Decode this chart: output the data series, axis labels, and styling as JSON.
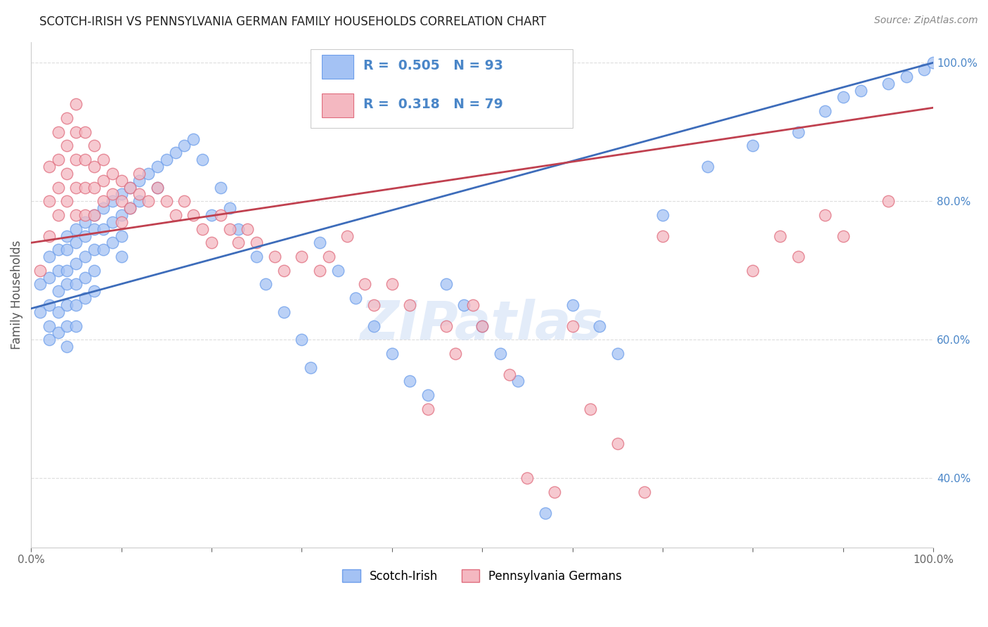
{
  "title": "SCOTCH-IRISH VS PENNSYLVANIA GERMAN FAMILY HOUSEHOLDS CORRELATION CHART",
  "source": "Source: ZipAtlas.com",
  "ylabel": "Family Households",
  "xlim": [
    0.0,
    1.0
  ],
  "ylim": [
    0.3,
    1.03
  ],
  "y_ticks_right": [
    0.4,
    0.6,
    0.8,
    1.0
  ],
  "y_tick_labels_right": [
    "40.0%",
    "60.0%",
    "80.0%",
    "100.0%"
  ],
  "x_tick_labels": [
    "0.0%",
    "",
    "",
    "",
    "",
    "",
    "",
    "",
    "",
    "",
    "100.0%"
  ],
  "watermark": "ZIPatlas",
  "blue_color": "#a4c2f4",
  "pink_color": "#f4b8c1",
  "blue_edge_color": "#6d9eeb",
  "pink_edge_color": "#e06c7d",
  "blue_line_color": "#3d6cba",
  "pink_line_color": "#c0404f",
  "legend_blue_r": "0.505",
  "legend_blue_n": "93",
  "legend_pink_r": "0.318",
  "legend_pink_n": "79",
  "legend_label_blue": "Scotch-Irish",
  "legend_label_pink": "Pennsylvania Germans",
  "title_color": "#222222",
  "source_color": "#888888",
  "axis_label_color": "#555555",
  "tick_color_right": "#4a86c8",
  "stat_color": "#4a86c8",
  "blue_scatter_x": [
    0.01,
    0.01,
    0.02,
    0.02,
    0.02,
    0.02,
    0.02,
    0.03,
    0.03,
    0.03,
    0.03,
    0.03,
    0.04,
    0.04,
    0.04,
    0.04,
    0.04,
    0.04,
    0.04,
    0.05,
    0.05,
    0.05,
    0.05,
    0.05,
    0.05,
    0.06,
    0.06,
    0.06,
    0.06,
    0.06,
    0.07,
    0.07,
    0.07,
    0.07,
    0.07,
    0.08,
    0.08,
    0.08,
    0.09,
    0.09,
    0.09,
    0.1,
    0.1,
    0.1,
    0.1,
    0.11,
    0.11,
    0.12,
    0.12,
    0.13,
    0.14,
    0.14,
    0.15,
    0.16,
    0.17,
    0.18,
    0.19,
    0.2,
    0.21,
    0.22,
    0.23,
    0.25,
    0.26,
    0.28,
    0.3,
    0.31,
    0.32,
    0.34,
    0.36,
    0.38,
    0.4,
    0.42,
    0.44,
    0.46,
    0.48,
    0.5,
    0.52,
    0.54,
    0.57,
    0.6,
    0.63,
    0.65,
    0.7,
    0.75,
    0.8,
    0.85,
    0.88,
    0.9,
    0.92,
    0.95,
    0.97,
    0.99,
    1.0
  ],
  "blue_scatter_y": [
    0.68,
    0.64,
    0.72,
    0.69,
    0.65,
    0.62,
    0.6,
    0.73,
    0.7,
    0.67,
    0.64,
    0.61,
    0.75,
    0.73,
    0.7,
    0.68,
    0.65,
    0.62,
    0.59,
    0.76,
    0.74,
    0.71,
    0.68,
    0.65,
    0.62,
    0.77,
    0.75,
    0.72,
    0.69,
    0.66,
    0.78,
    0.76,
    0.73,
    0.7,
    0.67,
    0.79,
    0.76,
    0.73,
    0.8,
    0.77,
    0.74,
    0.81,
    0.78,
    0.75,
    0.72,
    0.82,
    0.79,
    0.83,
    0.8,
    0.84,
    0.85,
    0.82,
    0.86,
    0.87,
    0.88,
    0.89,
    0.86,
    0.78,
    0.82,
    0.79,
    0.76,
    0.72,
    0.68,
    0.64,
    0.6,
    0.56,
    0.74,
    0.7,
    0.66,
    0.62,
    0.58,
    0.54,
    0.52,
    0.68,
    0.65,
    0.62,
    0.58,
    0.54,
    0.35,
    0.65,
    0.62,
    0.58,
    0.78,
    0.85,
    0.88,
    0.9,
    0.93,
    0.95,
    0.96,
    0.97,
    0.98,
    0.99,
    1.0
  ],
  "pink_scatter_x": [
    0.01,
    0.02,
    0.02,
    0.02,
    0.03,
    0.03,
    0.03,
    0.03,
    0.04,
    0.04,
    0.04,
    0.04,
    0.05,
    0.05,
    0.05,
    0.05,
    0.05,
    0.06,
    0.06,
    0.06,
    0.06,
    0.07,
    0.07,
    0.07,
    0.07,
    0.08,
    0.08,
    0.08,
    0.09,
    0.09,
    0.1,
    0.1,
    0.1,
    0.11,
    0.11,
    0.12,
    0.12,
    0.13,
    0.14,
    0.15,
    0.16,
    0.17,
    0.18,
    0.19,
    0.2,
    0.21,
    0.22,
    0.23,
    0.24,
    0.25,
    0.27,
    0.28,
    0.3,
    0.32,
    0.33,
    0.35,
    0.37,
    0.38,
    0.4,
    0.42,
    0.44,
    0.46,
    0.47,
    0.49,
    0.5,
    0.53,
    0.55,
    0.58,
    0.6,
    0.62,
    0.65,
    0.68,
    0.7,
    0.8,
    0.83,
    0.85,
    0.88,
    0.9,
    0.95
  ],
  "pink_scatter_y": [
    0.7,
    0.85,
    0.8,
    0.75,
    0.9,
    0.86,
    0.82,
    0.78,
    0.92,
    0.88,
    0.84,
    0.8,
    0.94,
    0.9,
    0.86,
    0.82,
    0.78,
    0.9,
    0.86,
    0.82,
    0.78,
    0.88,
    0.85,
    0.82,
    0.78,
    0.86,
    0.83,
    0.8,
    0.84,
    0.81,
    0.83,
    0.8,
    0.77,
    0.82,
    0.79,
    0.84,
    0.81,
    0.8,
    0.82,
    0.8,
    0.78,
    0.8,
    0.78,
    0.76,
    0.74,
    0.78,
    0.76,
    0.74,
    0.76,
    0.74,
    0.72,
    0.7,
    0.72,
    0.7,
    0.72,
    0.75,
    0.68,
    0.65,
    0.68,
    0.65,
    0.5,
    0.62,
    0.58,
    0.65,
    0.62,
    0.55,
    0.4,
    0.38,
    0.62,
    0.5,
    0.45,
    0.38,
    0.75,
    0.7,
    0.75,
    0.72,
    0.78,
    0.75,
    0.8
  ],
  "blue_line_x0": 0.0,
  "blue_line_y0": 0.645,
  "blue_line_x1": 1.0,
  "blue_line_y1": 1.0,
  "pink_line_x0": 0.0,
  "pink_line_y0": 0.74,
  "pink_line_x1": 1.0,
  "pink_line_y1": 0.935
}
